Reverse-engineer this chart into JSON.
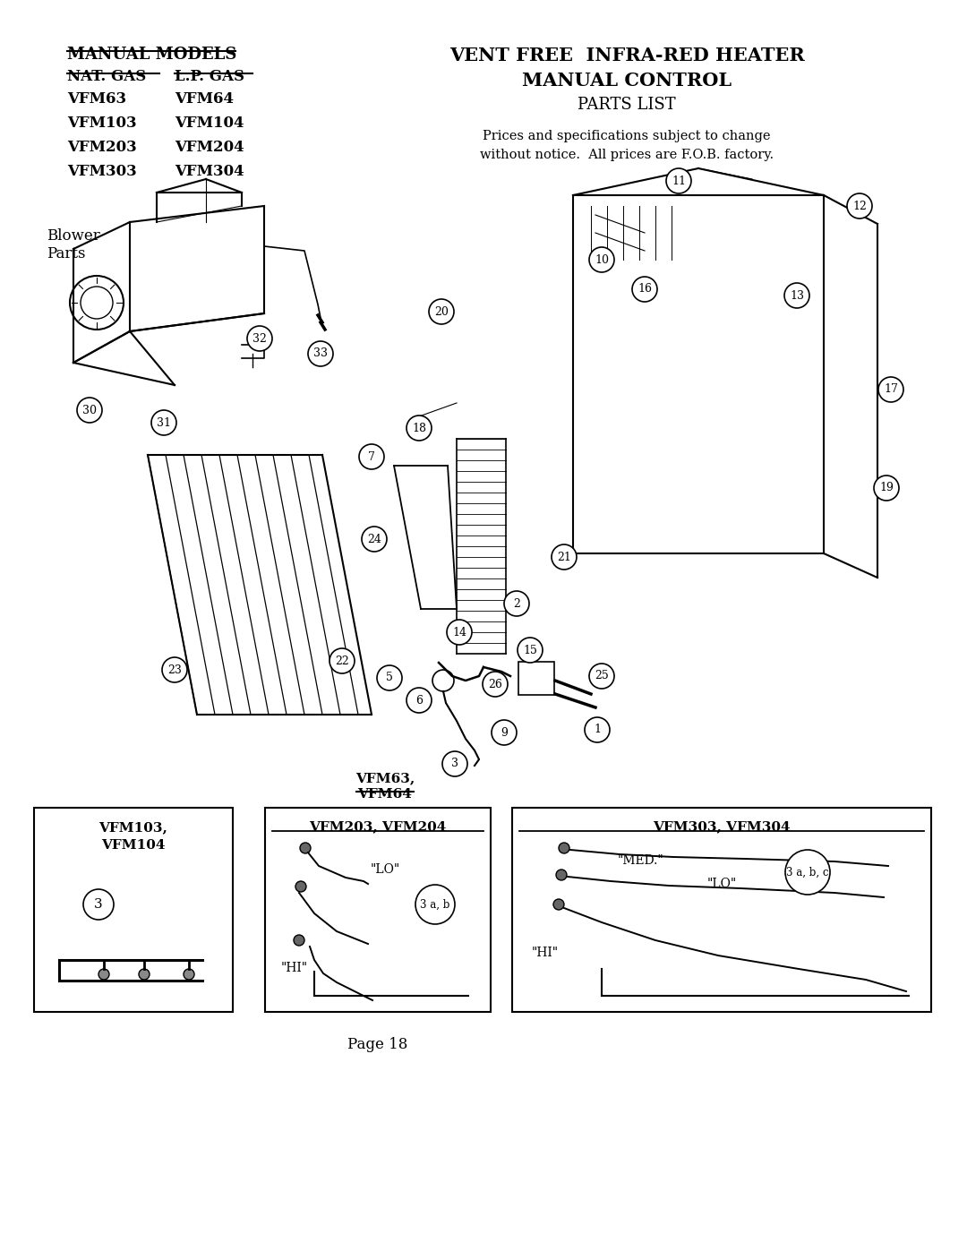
{
  "bg_color": "#ffffff",
  "title_line1": "VENT FREE  INFRA-RED HEATER",
  "title_line2": "MANUAL CONTROL",
  "title_line3": "PARTS LIST",
  "subtitle": "Prices and specifications subject to change\nwithout notice.  All prices are F.O.B. factory.",
  "manual_models_header": "MANUAL MODELS",
  "nat_gas_header": "NAT. GAS",
  "lp_gas_header": "L.P. GAS",
  "nat_gas_models": [
    "VFM63",
    "VFM103",
    "VFM203",
    "VFM303"
  ],
  "lp_gas_models": [
    "VFM64",
    "VFM104",
    "VFM204",
    "VFM304"
  ],
  "page_label": "Page 18",
  "blower_label": "Blower\nParts",
  "vfm63_64_label_line1": "VFM63,",
  "vfm63_64_label_line2": "VFM64",
  "vfm103_104_label": "VFM103,\nVFM104",
  "vfm203_204_label": "VFM203, VFM204",
  "vfm303_304_label": "VFM303, VFM304",
  "lo_label": "\"LO\"",
  "hi_label": "\"HI\"",
  "med_label": "\"MED.\"",
  "lo_label2": "\"LO\"",
  "hi_label2": "\"HI\"",
  "part_label_3ab": "3 a, b",
  "part_label_3abc": "3 a, b, c",
  "part_label_3": "3"
}
